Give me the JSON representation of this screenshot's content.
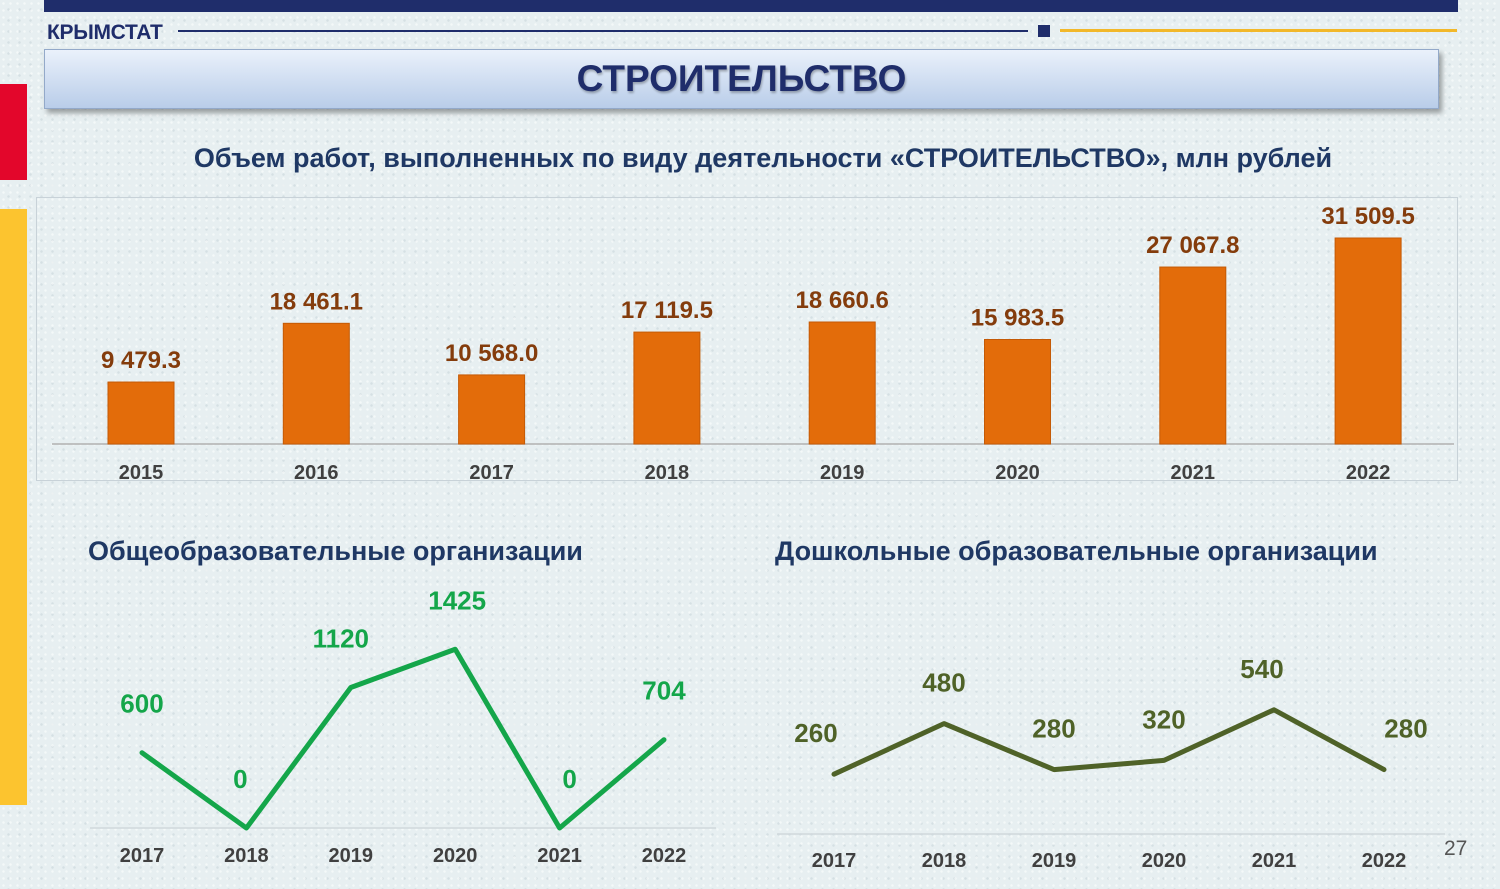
{
  "header": {
    "brand": "КРЫМСТАТ",
    "title": "СТРОИТЕЛЬСТВО",
    "page_number": "27"
  },
  "colors": {
    "navy": "#1f2d6b",
    "bar": "#e36c0a",
    "bar_label": "#843c0c",
    "green_line": "#14a64a",
    "olive_line": "#4f6228"
  },
  "chart_data": [
    {
      "type": "bar",
      "title": "Объем работ, выполненных по виду деятельности «СТРОИТЕЛЬСТВО», млн рублей",
      "categories": [
        "2015",
        "2016",
        "2017",
        "2018",
        "2019",
        "2020",
        "2021",
        "2022"
      ],
      "values": [
        9479.3,
        18461.1,
        10568.0,
        17119.5,
        18660.6,
        15983.5,
        27067.8,
        31509.5
      ],
      "labels": [
        "9 479.3",
        "18 461.1",
        "10 568.0",
        "17 119.5",
        "18 660.6",
        "15 983.5",
        "27 067.8",
        "31 509.5"
      ],
      "ylim": [
        0,
        33000
      ],
      "grid": false,
      "legend": "none"
    },
    {
      "type": "line",
      "title": "Общеобразовательные организации",
      "categories": [
        "2017",
        "2018",
        "2019",
        "2020",
        "2021",
        "2022"
      ],
      "values": [
        600,
        0,
        1120,
        1425,
        0,
        704
      ],
      "labels": [
        "600",
        "0",
        "1120",
        "1425",
        "0",
        "704"
      ],
      "ylim": [
        0,
        1475
      ],
      "grid": false,
      "legend": "none"
    },
    {
      "type": "line",
      "title": "Дошкольные образовательные организации",
      "categories": [
        "2017",
        "2018",
        "2019",
        "2020",
        "2021",
        "2022"
      ],
      "values": [
        260,
        480,
        280,
        320,
        540,
        280
      ],
      "labels": [
        "260",
        "480",
        "280",
        "320",
        "540",
        "280"
      ],
      "ylim": [
        0,
        1000
      ],
      "grid": false,
      "legend": "none"
    }
  ]
}
